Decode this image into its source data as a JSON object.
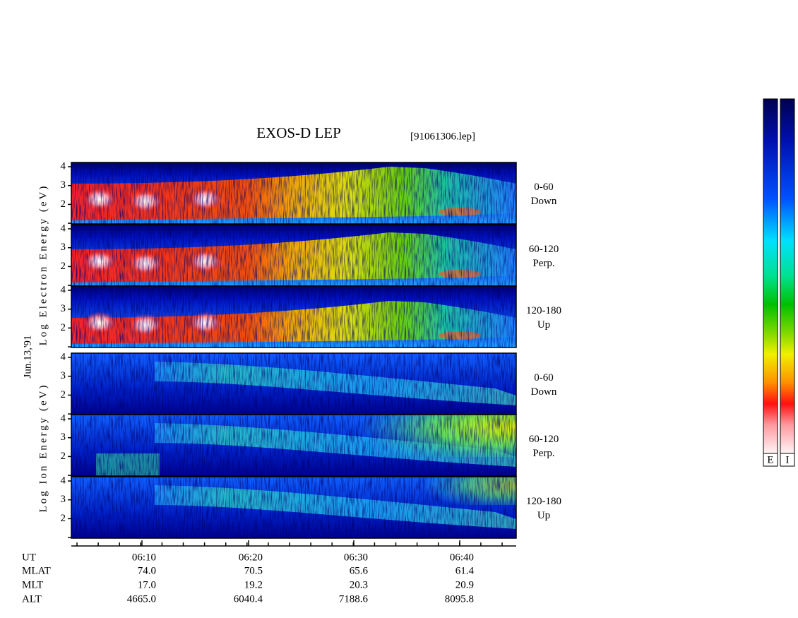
{
  "title": "EXOS-D LEP",
  "file": "[91061306.lep]",
  "date": "Jun.13,'91",
  "electron_axis": "Log Electron Energy (eV)",
  "ion_axis": "Log Ion Energy (eV)",
  "panels": [
    {
      "ticks": [
        "4",
        "3",
        "2"
      ],
      "range": "0-60",
      "direction": "Down"
    },
    {
      "ticks": [
        "4",
        "3",
        "2"
      ],
      "range": "60-120",
      "direction": "Perp."
    },
    {
      "ticks": [
        "4",
        "3",
        "2"
      ],
      "range": "120-180",
      "direction": "Up"
    },
    {
      "ticks": [
        "4",
        "3",
        "2"
      ],
      "range": "0-60",
      "direction": "Down"
    },
    {
      "ticks": [
        "4",
        "3",
        "2"
      ],
      "range": "60-120",
      "direction": "Perp."
    },
    {
      "ticks": [
        "4",
        "3",
        "2"
      ],
      "range": "120-180",
      "direction": "Up"
    }
  ],
  "ephemeris": [
    {
      "label": "UT",
      "values": [
        "06:10",
        "06:20",
        "06:30",
        "06:40"
      ]
    },
    {
      "label": "MLAT",
      "values": [
        "74.0",
        "70.5",
        "65.6",
        "61.4"
      ]
    },
    {
      "label": "MLT",
      "values": [
        "17.0",
        "19.2",
        "20.3",
        "20.9"
      ]
    },
    {
      "label": "ALT",
      "values": [
        "4665.0",
        "6040.4",
        "7188.6",
        "8095.8"
      ]
    }
  ],
  "colorbar_labels": [
    "E",
    "I"
  ]
}
